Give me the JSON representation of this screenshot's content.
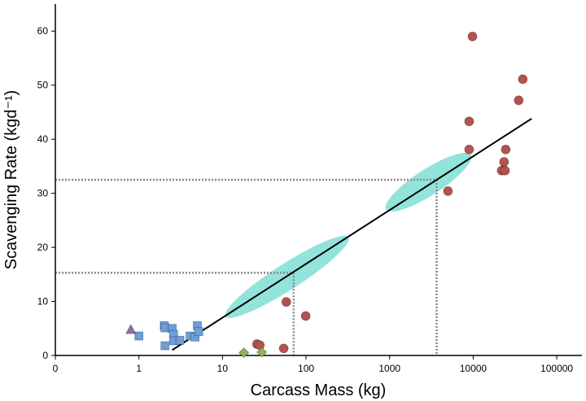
{
  "chart_data": {
    "type": "scatter",
    "x_label": "Carcass Mass (kg)",
    "y_label": "Scavenging Rate (kgd⁻¹)",
    "x_scale": "log",
    "xlim": [
      0.1,
      200000
    ],
    "xticks": [
      {
        "value": 0.1,
        "label": "0"
      },
      1,
      10,
      100,
      1000,
      10000,
      100000
    ],
    "ylim": [
      0,
      65
    ],
    "yticks": [
      0,
      10,
      20,
      30,
      40,
      50,
      60
    ],
    "series": [
      {
        "color": "#b6524e",
        "marker": "circle",
        "x": [
          9800,
          39200,
          35000,
          8940,
          8940,
          24500,
          23400,
          21900,
          24000,
          4990,
          58,
          99,
          25.8,
          28,
          54
        ],
        "values": [
          59,
          51.1,
          47.2,
          43.3,
          38.1,
          38.1,
          35.8,
          34.2,
          34.2,
          30.4,
          9.9,
          7.3,
          2.1,
          1.9,
          1.3
        ]
      },
      {
        "color": "#6a9fdc",
        "marker": "square",
        "x": [
          1.0,
          2.01,
          2.05,
          2.05,
          2.5,
          2.6,
          2.6,
          3.1,
          4.1,
          4.7,
          5.0,
          5.2
        ],
        "values": [
          3.6,
          5.5,
          5.1,
          1.8,
          5.0,
          3.9,
          2.7,
          2.8,
          3.6,
          3.4,
          5.5,
          4.4
        ]
      },
      {
        "color": "#8e6fa8",
        "marker": "triangle",
        "x": [
          0.8
        ],
        "values": [
          4.8
        ]
      },
      {
        "color": "#8fb35a",
        "marker": "diamond",
        "x": [
          18,
          29.5
        ],
        "values": [
          0.5,
          0.6
        ]
      }
    ],
    "fit_line": {
      "color": "#000000",
      "x": [
        2.5,
        50000
      ],
      "values": [
        1.0,
        43.8
      ]
    },
    "reference_points": {
      "color": "#7fded6",
      "x": [
        71,
        3650
      ],
      "values": [
        15.3,
        32.5
      ]
    }
  }
}
